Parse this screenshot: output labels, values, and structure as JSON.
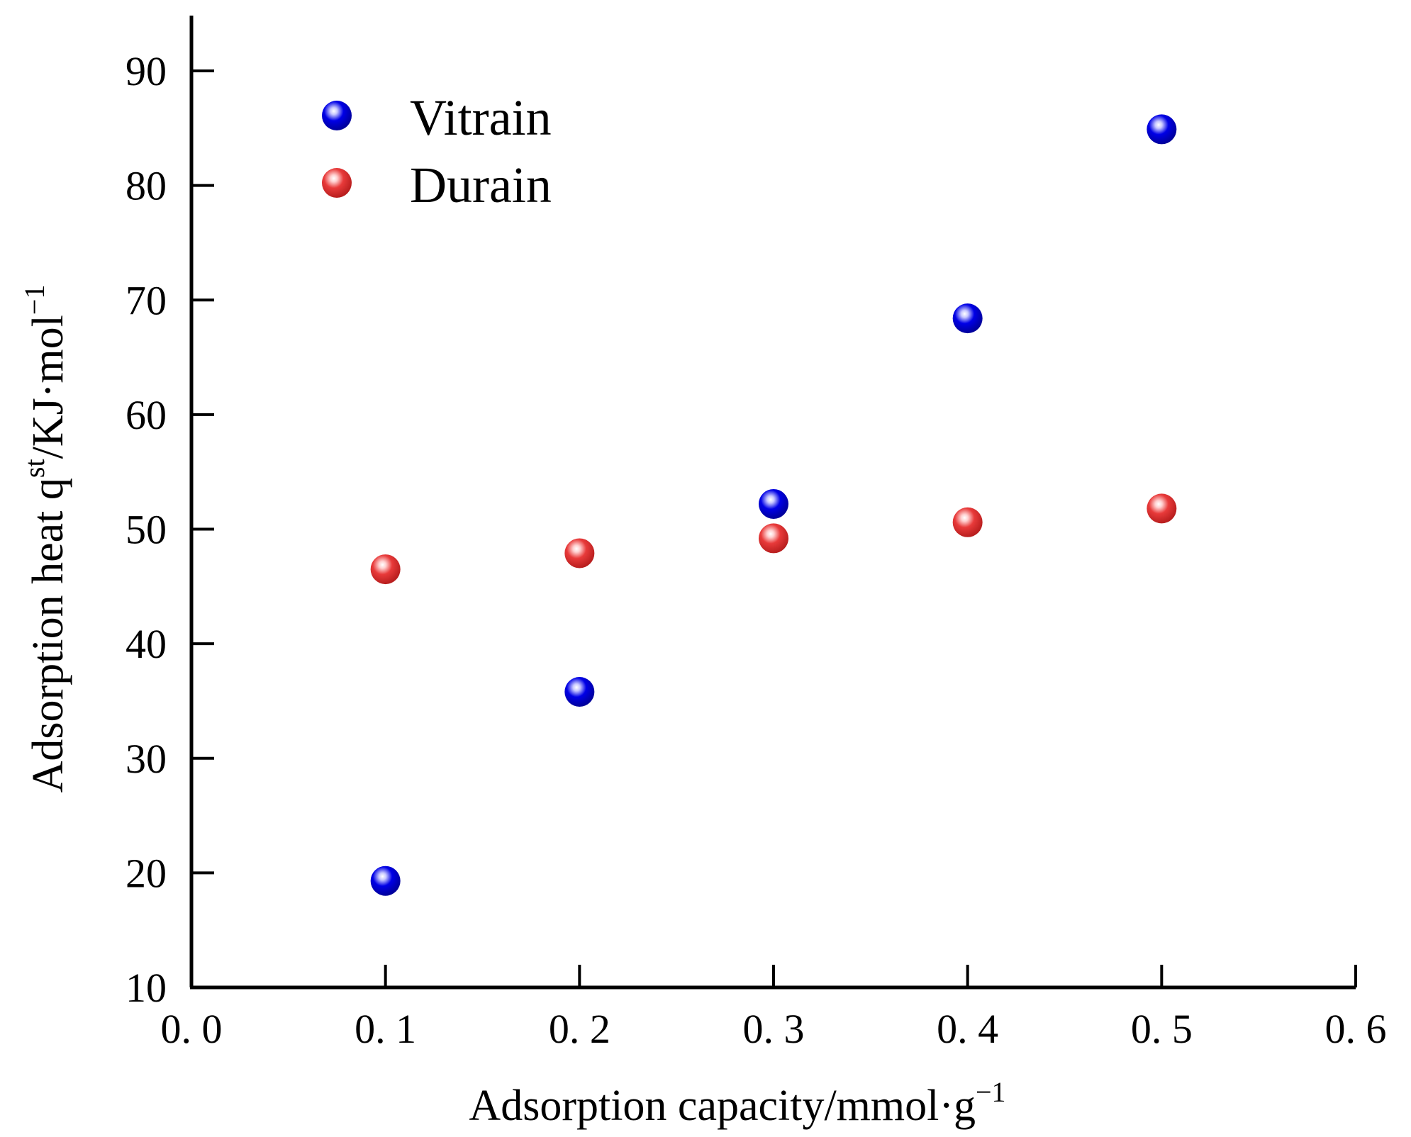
{
  "chart_data": {
    "type": "scatter",
    "title": "",
    "xlabel": "Adsorption capacity/mmol·g",
    "xlabel_sup": "−1",
    "ylabel_main": "Adsorption heat q",
    "ylabel_sup1": "st",
    "ylabel_mid": "/KJ·mol",
    "ylabel_sup2": "−1",
    "xlim": [
      0.0,
      0.6
    ],
    "ylim": [
      10,
      95
    ],
    "x_ticks": [
      0.0,
      0.1,
      0.2,
      0.3,
      0.4,
      0.5,
      0.6
    ],
    "x_tick_labels": [
      "0. 0",
      "0. 1",
      "0. 2",
      "0. 3",
      "0. 4",
      "0. 5",
      "0. 6"
    ],
    "y_ticks": [
      10,
      20,
      30,
      40,
      50,
      60,
      70,
      80,
      90
    ],
    "y_tick_labels": [
      "10",
      "20",
      "30",
      "40",
      "50",
      "60",
      "70",
      "80",
      "90"
    ],
    "grid": false,
    "legend_position": "top-left",
    "series": [
      {
        "name": "Vitrain",
        "color": "#0000e6",
        "highlight": "#c8c8ff",
        "x": [
          0.1,
          0.2,
          0.3,
          0.4,
          0.5
        ],
        "y": [
          19.3,
          35.8,
          52.2,
          68.4,
          84.9
        ]
      },
      {
        "name": "Durain",
        "color": "#e83a3a",
        "highlight": "#ffd6d6",
        "x": [
          0.1,
          0.2,
          0.3,
          0.4,
          0.5
        ],
        "y": [
          46.5,
          47.9,
          49.2,
          50.6,
          51.8
        ]
      }
    ]
  }
}
